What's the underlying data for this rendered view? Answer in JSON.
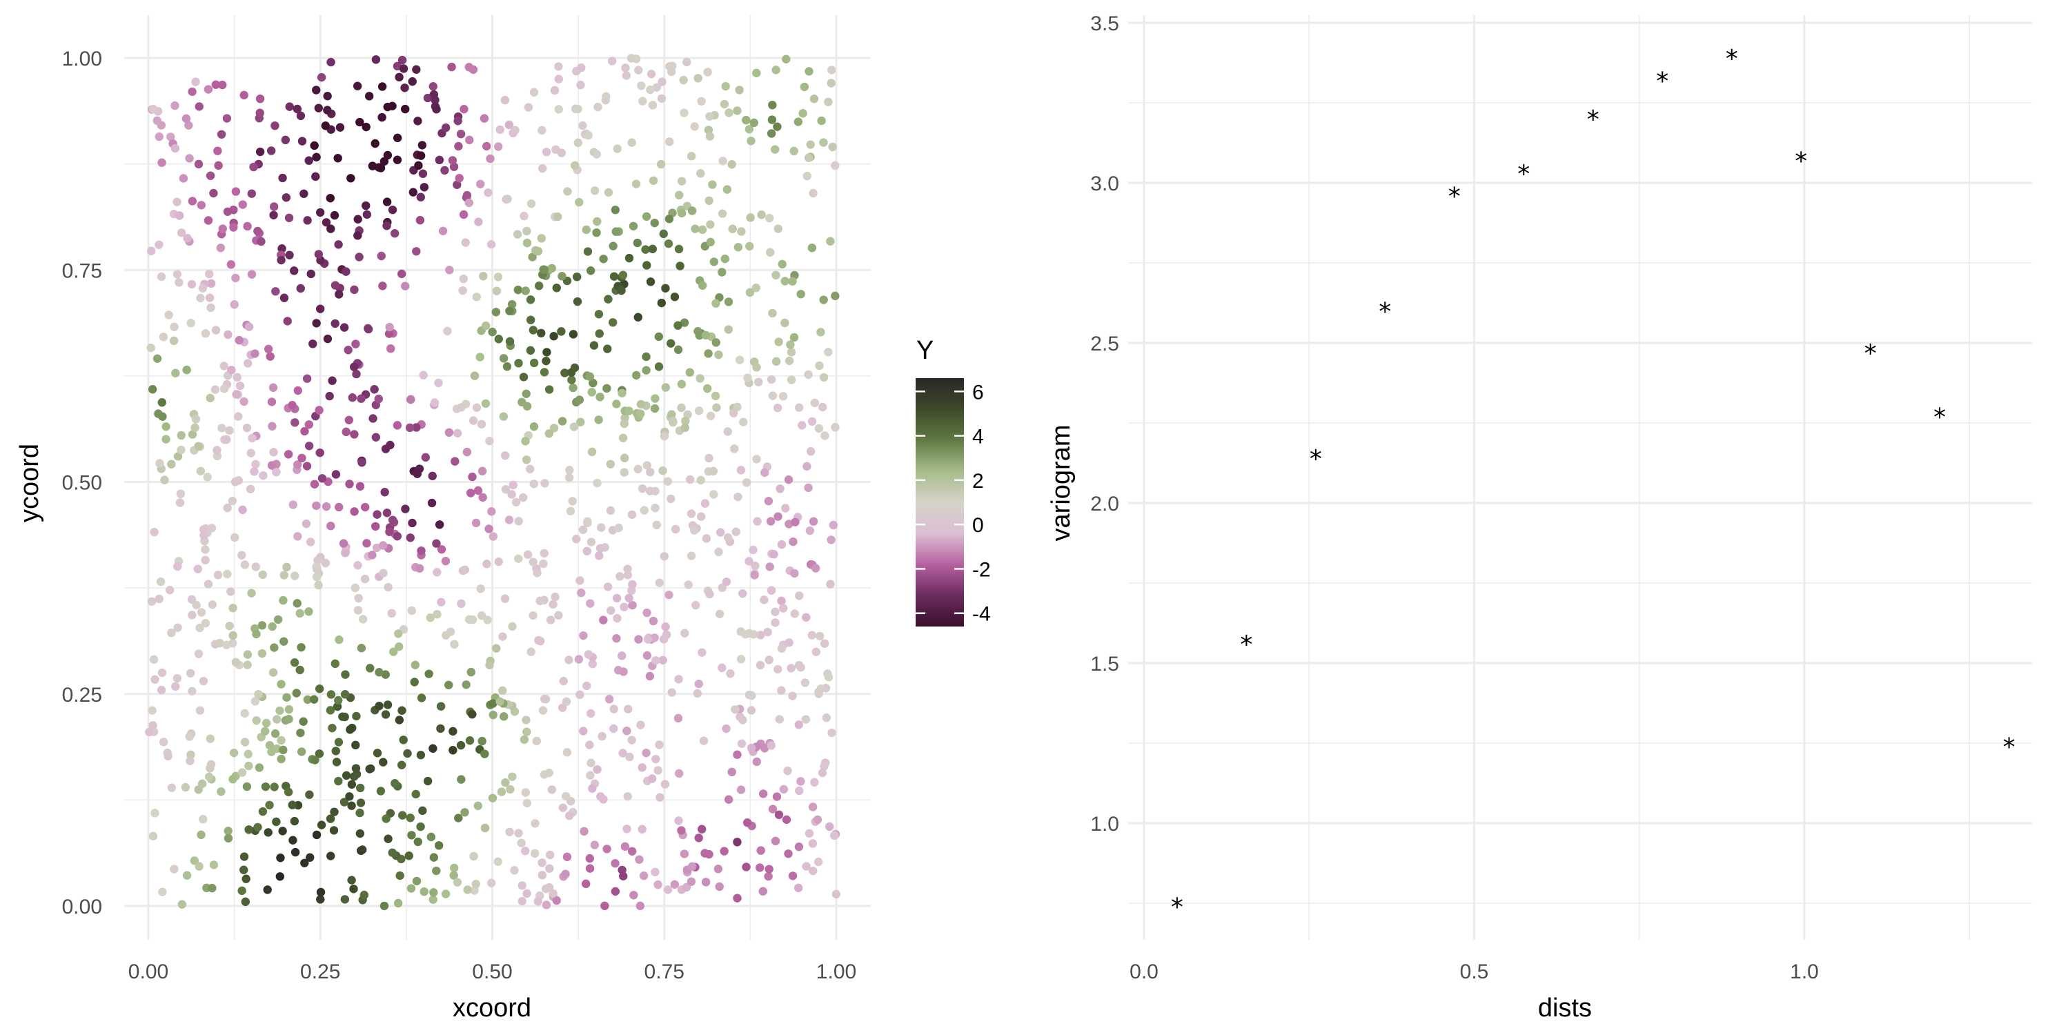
{
  "chart_data": [
    {
      "type": "scatter",
      "xlabel": "xcoord",
      "ylabel": "ycoord",
      "xlim": [
        0,
        1
      ],
      "ylim": [
        0,
        1
      ],
      "xticks": [
        "0.00",
        "0.25",
        "0.50",
        "0.75",
        "1.00"
      ],
      "yticks": [
        "0.00",
        "0.25",
        "0.50",
        "0.75",
        "1.00"
      ],
      "grid": true,
      "legend": {
        "title": "Y",
        "position": "right",
        "range": [
          -4.6,
          6.6
        ],
        "ticks": [
          -4,
          -2,
          0,
          2,
          4,
          6
        ],
        "tick_labels": [
          "-4",
          "-2",
          "0",
          "2",
          "4",
          "6"
        ],
        "colors": [
          "#3b0f2b",
          "#6a2b5f",
          "#b7619f",
          "#dcbfd4",
          "#d6d2c8",
          "#a6bd8a",
          "#5f7a43",
          "#3d4a2a",
          "#2b2726"
        ]
      },
      "field": {
        "description_points": 1600,
        "features": [
          {
            "x": 0.28,
            "y": 0.88,
            "value": -4.2,
            "spread": 0.13
          },
          {
            "x": 0.3,
            "y": 0.54,
            "value": -3.0,
            "spread": 0.09
          },
          {
            "x": 0.42,
            "y": 0.47,
            "value": -3.6,
            "spread": 0.05
          },
          {
            "x": 0.23,
            "y": 0.69,
            "value": -2.4,
            "spread": 0.05
          },
          {
            "x": 0.37,
            "y": 0.92,
            "value": -2.0,
            "spread": 0.08
          },
          {
            "x": 0.22,
            "y": 0.03,
            "value": 6.2,
            "spread": 0.09
          },
          {
            "x": 0.31,
            "y": 0.22,
            "value": 3.8,
            "spread": 0.07
          },
          {
            "x": 0.45,
            "y": 0.21,
            "value": 4.2,
            "spread": 0.06
          },
          {
            "x": 0.72,
            "y": 0.72,
            "value": 4.2,
            "spread": 0.1
          },
          {
            "x": 0.55,
            "y": 0.66,
            "value": 3.4,
            "spread": 0.07
          },
          {
            "x": 0.02,
            "y": 0.6,
            "value": 3.2,
            "spread": 0.05
          },
          {
            "x": 0.92,
            "y": 0.94,
            "value": 2.8,
            "spread": 0.06
          },
          {
            "x": 0.2,
            "y": 0.33,
            "value": 2.8,
            "spread": 0.05
          },
          {
            "x": 0.4,
            "y": 0.07,
            "value": 2.4,
            "spread": 0.06
          },
          {
            "x": 0.98,
            "y": 0.72,
            "value": 2.8,
            "spread": 0.05
          },
          {
            "x": 0.86,
            "y": 0.08,
            "value": -2.6,
            "spread": 0.08
          },
          {
            "x": 0.66,
            "y": 0.03,
            "value": -2.6,
            "spread": 0.05
          },
          {
            "x": 0.95,
            "y": 0.44,
            "value": -1.6,
            "spread": 0.06
          },
          {
            "x": 0.68,
            "y": 0.3,
            "value": -1.4,
            "spread": 0.07
          },
          {
            "x": 0.1,
            "y": 0.9,
            "value": -1.2,
            "spread": 0.06
          }
        ]
      }
    },
    {
      "type": "scatter",
      "xlabel": "dists",
      "ylabel": "variogram",
      "xlim": [
        0,
        1.33
      ],
      "ylim": [
        0.7,
        3.5
      ],
      "xticks": [
        "0.0",
        "0.5",
        "1.0"
      ],
      "xtick_values": [
        0,
        0.5,
        1.0
      ],
      "yticks": [
        "1.0",
        "1.5",
        "2.0",
        "2.5",
        "3.0",
        "3.5"
      ],
      "ytick_values": [
        1.0,
        1.5,
        2.0,
        2.5,
        3.0,
        3.5
      ],
      "grid": true,
      "marker": "*",
      "x": [
        0.05,
        0.155,
        0.26,
        0.365,
        0.47,
        0.575,
        0.68,
        0.785,
        0.89,
        0.995,
        1.1,
        1.205,
        1.31
      ],
      "y": [
        0.74,
        1.56,
        2.14,
        2.6,
        2.96,
        3.03,
        3.2,
        3.32,
        3.39,
        3.07,
        2.47,
        2.27,
        1.24
      ]
    }
  ]
}
